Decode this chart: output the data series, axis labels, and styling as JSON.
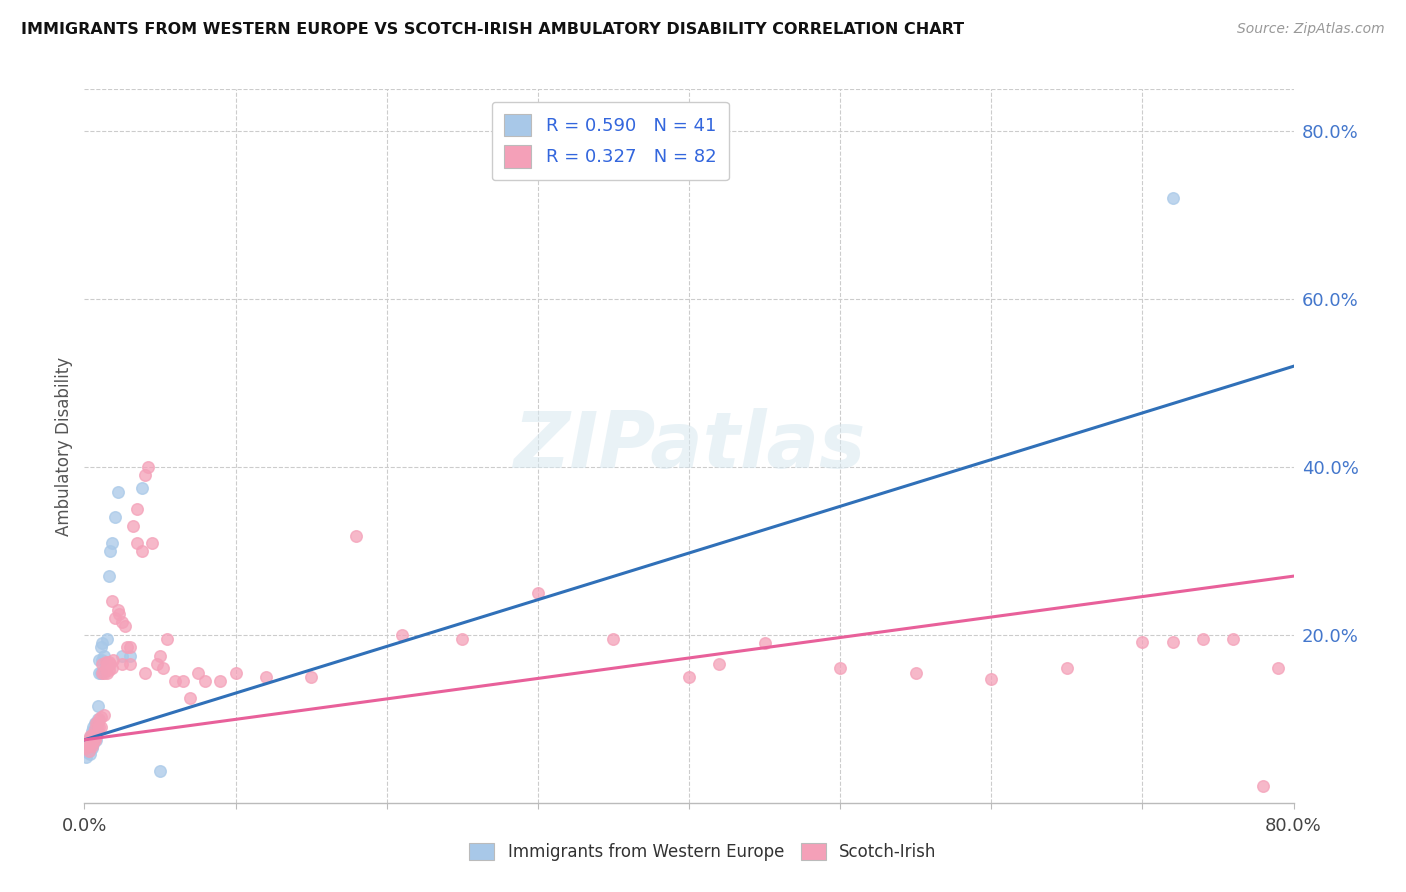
{
  "title": "IMMIGRANTS FROM WESTERN EUROPE VS SCOTCH-IRISH AMBULATORY DISABILITY CORRELATION CHART",
  "source": "Source: ZipAtlas.com",
  "ylabel": "Ambulatory Disability",
  "blue_color": "#a8c8e8",
  "pink_color": "#f4a0b8",
  "blue_line_color": "#3070b8",
  "pink_line_color": "#e8609a",
  "watermark": "ZIPatlas",
  "blue_line_x0": 0.0,
  "blue_line_y0": 0.075,
  "blue_line_x1": 0.8,
  "blue_line_y1": 0.52,
  "pink_line_x0": 0.0,
  "pink_line_y0": 0.075,
  "pink_line_x1": 0.8,
  "pink_line_y1": 0.27,
  "xlim": [
    0.0,
    0.8
  ],
  "ylim": [
    0.0,
    0.85
  ],
  "blue_scatter_x": [
    0.001,
    0.002,
    0.002,
    0.003,
    0.003,
    0.003,
    0.004,
    0.004,
    0.004,
    0.005,
    0.005,
    0.005,
    0.006,
    0.006,
    0.006,
    0.007,
    0.007,
    0.007,
    0.008,
    0.008,
    0.008,
    0.009,
    0.009,
    0.01,
    0.01,
    0.011,
    0.011,
    0.012,
    0.012,
    0.013,
    0.015,
    0.016,
    0.017,
    0.018,
    0.02,
    0.022,
    0.025,
    0.03,
    0.038,
    0.05,
    0.72
  ],
  "blue_scatter_y": [
    0.055,
    0.06,
    0.065,
    0.062,
    0.068,
    0.072,
    0.058,
    0.07,
    0.078,
    0.065,
    0.075,
    0.085,
    0.07,
    0.08,
    0.09,
    0.078,
    0.088,
    0.095,
    0.075,
    0.088,
    0.095,
    0.1,
    0.115,
    0.155,
    0.17,
    0.155,
    0.185,
    0.17,
    0.19,
    0.175,
    0.195,
    0.27,
    0.3,
    0.31,
    0.34,
    0.37,
    0.175,
    0.175,
    0.375,
    0.038,
    0.72
  ],
  "pink_scatter_x": [
    0.001,
    0.002,
    0.003,
    0.003,
    0.004,
    0.004,
    0.005,
    0.005,
    0.006,
    0.006,
    0.007,
    0.007,
    0.008,
    0.008,
    0.009,
    0.009,
    0.01,
    0.01,
    0.011,
    0.011,
    0.012,
    0.012,
    0.013,
    0.013,
    0.014,
    0.014,
    0.015,
    0.015,
    0.016,
    0.016,
    0.017,
    0.018,
    0.018,
    0.019,
    0.02,
    0.022,
    0.023,
    0.025,
    0.025,
    0.027,
    0.028,
    0.03,
    0.03,
    0.032,
    0.035,
    0.035,
    0.038,
    0.04,
    0.04,
    0.042,
    0.045,
    0.048,
    0.05,
    0.052,
    0.055,
    0.06,
    0.065,
    0.07,
    0.075,
    0.08,
    0.09,
    0.1,
    0.12,
    0.15,
    0.18,
    0.21,
    0.25,
    0.3,
    0.35,
    0.4,
    0.42,
    0.45,
    0.5,
    0.55,
    0.6,
    0.65,
    0.7,
    0.72,
    0.74,
    0.76,
    0.78,
    0.79
  ],
  "pink_scatter_y": [
    0.065,
    0.068,
    0.062,
    0.075,
    0.07,
    0.08,
    0.068,
    0.078,
    0.072,
    0.082,
    0.075,
    0.088,
    0.08,
    0.095,
    0.085,
    0.095,
    0.09,
    0.1,
    0.09,
    0.102,
    0.155,
    0.165,
    0.105,
    0.155,
    0.16,
    0.168,
    0.155,
    0.165,
    0.158,
    0.168,
    0.165,
    0.24,
    0.16,
    0.17,
    0.22,
    0.23,
    0.225,
    0.215,
    0.165,
    0.21,
    0.185,
    0.165,
    0.185,
    0.33,
    0.31,
    0.35,
    0.3,
    0.39,
    0.155,
    0.4,
    0.31,
    0.165,
    0.175,
    0.16,
    0.195,
    0.145,
    0.145,
    0.125,
    0.155,
    0.145,
    0.145,
    0.155,
    0.15,
    0.15,
    0.318,
    0.2,
    0.195,
    0.25,
    0.195,
    0.15,
    0.165,
    0.19,
    0.16,
    0.155,
    0.148,
    0.16,
    0.192,
    0.192,
    0.195,
    0.195,
    0.02,
    0.16
  ]
}
